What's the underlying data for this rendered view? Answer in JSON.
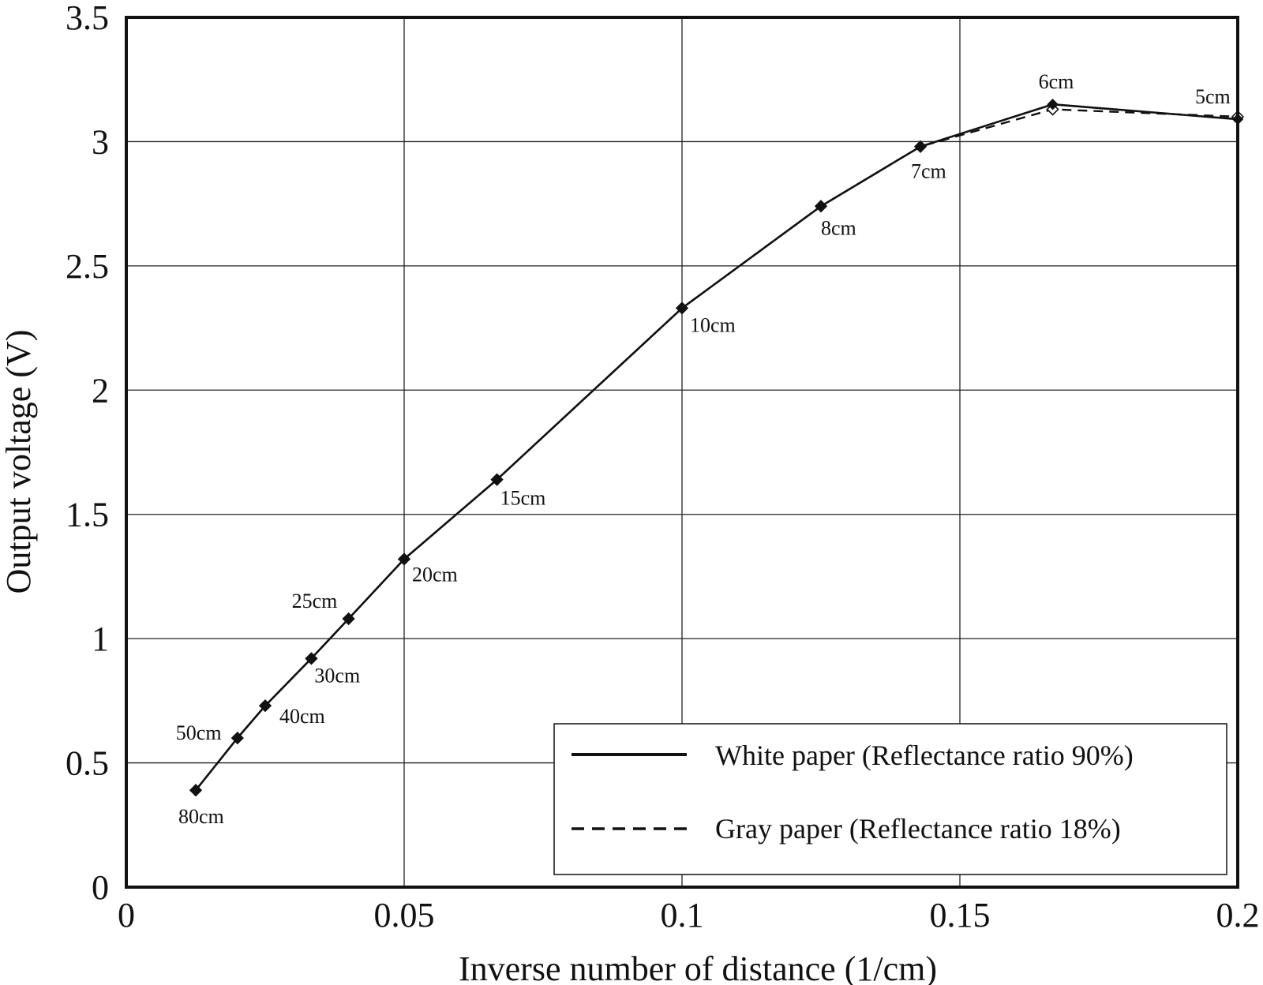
{
  "chart_data": {
    "type": "line",
    "xlabel": "Inverse number of distance (1/cm)",
    "ylabel": "Output voltage (V)",
    "xlim": [
      0,
      0.2
    ],
    "ylim": [
      0,
      3.5
    ],
    "x_ticks": [
      0,
      0.05,
      0.1,
      0.15,
      0.2
    ],
    "x_tick_labels": [
      "0",
      "0.05",
      "0.1",
      "0.15",
      "0.2"
    ],
    "y_ticks": [
      0,
      0.5,
      1,
      1.5,
      2,
      2.5,
      3,
      3.5
    ],
    "y_tick_labels": [
      "0",
      "0.5",
      "1",
      "1.5",
      "2",
      "2.5",
      "3",
      "3.5"
    ],
    "grid": true,
    "legend_position": "bottom-right",
    "series": [
      {
        "name": "White paper (Reflectance ratio 90%)",
        "line_style": "solid",
        "marker": "filled-diamond",
        "color": "#111111",
        "x": [
          0.0125,
          0.02,
          0.025,
          0.0333,
          0.04,
          0.05,
          0.0667,
          0.1,
          0.125,
          0.1429,
          0.1667,
          0.2
        ],
        "y": [
          0.39,
          0.6,
          0.73,
          0.92,
          1.08,
          1.32,
          1.64,
          2.33,
          2.74,
          2.98,
          3.15,
          3.09
        ]
      },
      {
        "name": "Gray paper (Reflectance ratio 18%)",
        "line_style": "dashed",
        "marker": "open-diamond",
        "color": "#111111",
        "x": [
          0.0125,
          0.02,
          0.025,
          0.0333,
          0.04,
          0.05,
          0.0667,
          0.1,
          0.125,
          0.1429,
          0.1667,
          0.2
        ],
        "y": [
          0.39,
          0.6,
          0.73,
          0.92,
          1.08,
          1.32,
          1.64,
          2.33,
          2.74,
          2.98,
          3.13,
          3.1
        ]
      }
    ],
    "point_labels": [
      {
        "text": "80cm",
        "x": 0.0125,
        "y": 0.39
      },
      {
        "text": "50cm",
        "x": 0.02,
        "y": 0.6
      },
      {
        "text": "40cm",
        "x": 0.025,
        "y": 0.73
      },
      {
        "text": "30cm",
        "x": 0.0333,
        "y": 0.92
      },
      {
        "text": "25cm",
        "x": 0.04,
        "y": 1.08
      },
      {
        "text": "20cm",
        "x": 0.05,
        "y": 1.32
      },
      {
        "text": "15cm",
        "x": 0.0667,
        "y": 1.64
      },
      {
        "text": "10cm",
        "x": 0.1,
        "y": 2.33
      },
      {
        "text": "8cm",
        "x": 0.125,
        "y": 2.74
      },
      {
        "text": "7cm",
        "x": 0.1429,
        "y": 2.98
      },
      {
        "text": "6cm",
        "x": 0.1667,
        "y": 3.15
      },
      {
        "text": "5cm",
        "x": 0.2,
        "y": 3.09
      }
    ]
  }
}
